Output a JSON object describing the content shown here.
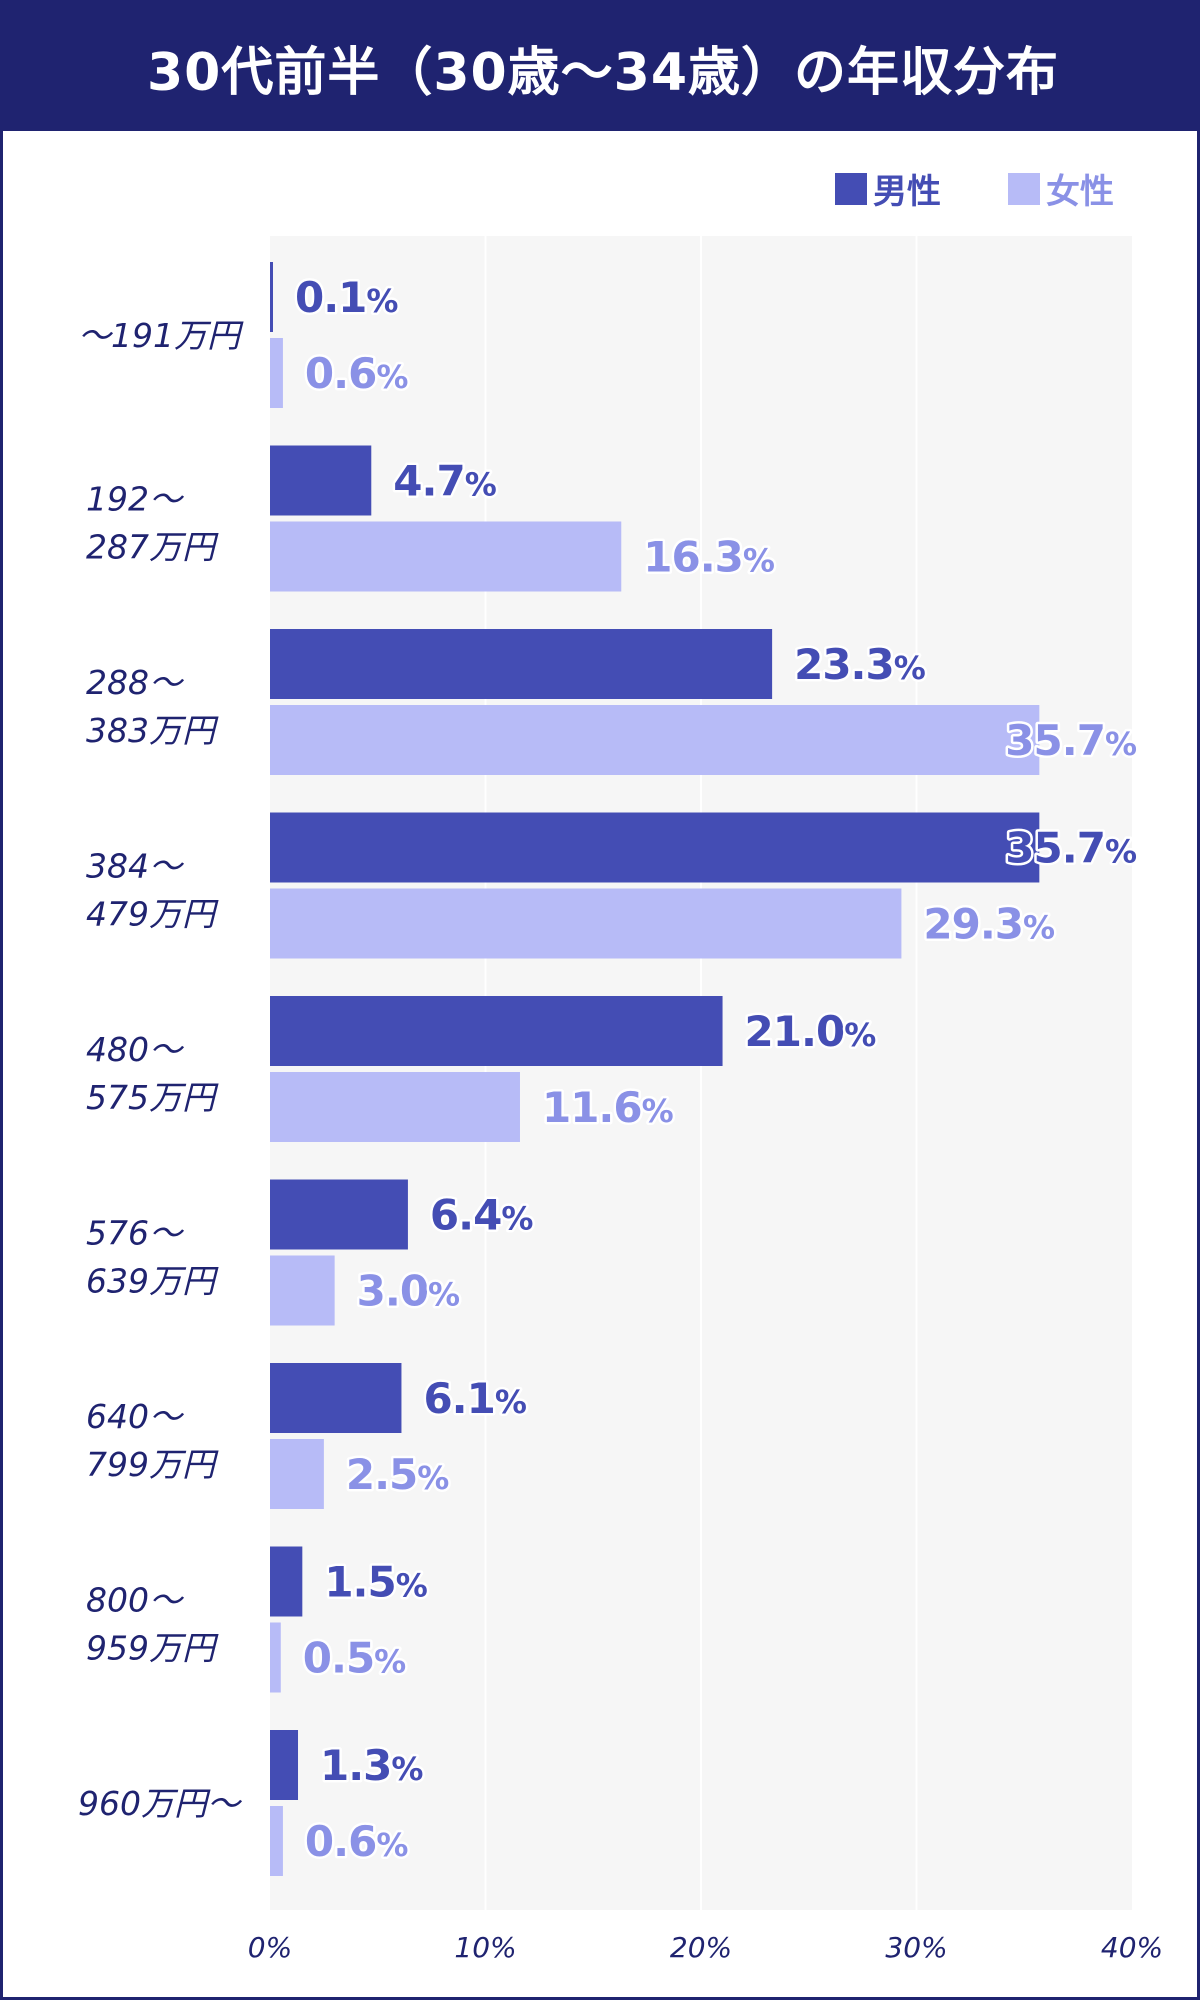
{
  "title": "30代前半（30歳〜34歳）の年収分布",
  "colors": {
    "header_bg": "#1f2370",
    "male_bar": "#444db4",
    "female_bar": "#b7bbf7",
    "male_text": "#444db4",
    "female_text": "#8a91e6",
    "plot_bg": "#f6f6f6",
    "axis_text": "#1f2370"
  },
  "chart_data": {
    "type": "bar",
    "orientation": "horizontal",
    "categories": [
      [
        "〜191万円"
      ],
      [
        "192〜",
        "287万円"
      ],
      [
        "288〜",
        "383万円"
      ],
      [
        "384〜",
        "479万円"
      ],
      [
        "480〜",
        "575万円"
      ],
      [
        "576〜",
        "639万円"
      ],
      [
        "640〜",
        "799万円"
      ],
      [
        "800〜",
        "959万円"
      ],
      [
        "960万円〜"
      ]
    ],
    "series": [
      {
        "name": "男性",
        "values": [
          0.1,
          4.7,
          23.3,
          35.7,
          21.0,
          6.4,
          6.1,
          1.5,
          1.3
        ],
        "labels": [
          "0.1",
          "4.7",
          "23.3",
          "35.7",
          "21.0",
          "6.4",
          "6.1",
          "1.5",
          "1.3"
        ]
      },
      {
        "name": "女性",
        "values": [
          0.6,
          16.3,
          35.7,
          29.3,
          11.6,
          3.0,
          2.5,
          0.5,
          0.6
        ],
        "labels": [
          "0.6",
          "16.3",
          "35.7",
          "29.3",
          "11.6",
          "3.0",
          "2.5",
          "0.5",
          "0.6"
        ]
      }
    ],
    "value_suffix": "%",
    "xlim": [
      0,
      40
    ],
    "xticks": [
      0,
      10,
      20,
      30,
      40
    ],
    "xtick_labels": [
      "0%",
      "10%",
      "20%",
      "30%",
      "40%"
    ],
    "grid": true,
    "legend_position": "top-right"
  }
}
